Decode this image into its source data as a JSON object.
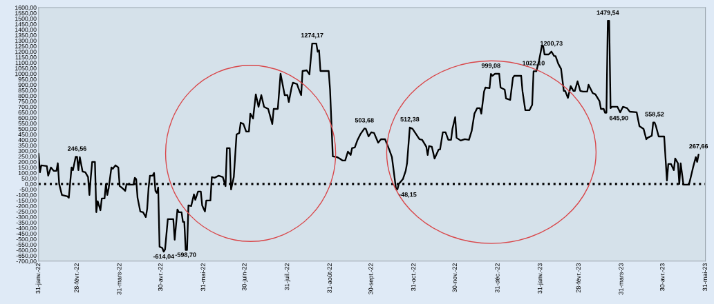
{
  "chart_data": {
    "type": "line",
    "x": [
      "2022-01-31",
      "2022-02-01",
      "2022-02-02",
      "2022-02-06",
      "2022-02-07",
      "2022-02-09",
      "2022-02-11",
      "2022-02-13",
      "2022-02-14",
      "2022-02-15",
      "2022-02-17",
      "2022-02-21",
      "2022-02-22",
      "2022-02-24",
      "2022-02-25",
      "2022-02-27",
      "2022-02-28",
      "2022-03-01",
      "2022-03-02",
      "2022-03-04",
      "2022-03-06",
      "2022-03-08",
      "2022-03-09",
      "2022-03-10",
      "2022-03-11",
      "2022-03-13",
      "2022-03-14",
      "2022-03-15",
      "2022-03-17",
      "2022-03-18",
      "2022-03-20",
      "2022-03-21",
      "2022-03-22",
      "2022-03-23",
      "2022-03-25",
      "2022-03-26",
      "2022-03-28",
      "2022-03-30",
      "2022-03-31",
      "2022-04-02",
      "2022-04-04",
      "2022-04-05",
      "2022-04-07",
      "2022-04-10",
      "2022-04-11",
      "2022-04-12",
      "2022-04-13",
      "2022-04-15",
      "2022-04-17",
      "2022-04-19",
      "2022-04-20",
      "2022-04-21",
      "2022-04-22",
      "2022-04-24",
      "2022-04-25",
      "2022-04-26",
      "2022-04-27",
      "2022-04-28",
      "2022-04-29",
      "2022-05-01",
      "2022-05-02",
      "2022-05-03",
      "2022-05-05",
      "2022-05-09",
      "2022-05-10",
      "2022-05-12",
      "2022-05-13",
      "2022-05-15",
      "2022-05-16",
      "2022-05-17",
      "2022-05-18",
      "2022-05-19",
      "2022-05-20",
      "2022-05-22",
      "2022-05-24",
      "2022-05-25",
      "2022-05-27",
      "2022-05-29",
      "2022-05-30",
      "2022-06-01",
      "2022-06-02",
      "2022-06-05",
      "2022-06-06",
      "2022-06-08",
      "2022-06-11",
      "2022-06-14",
      "2022-06-16",
      "2022-06-17",
      "2022-06-19",
      "2022-06-20",
      "2022-06-22",
      "2022-06-24",
      "2022-06-26",
      "2022-06-27",
      "2022-06-29",
      "2022-07-01",
      "2022-07-03",
      "2022-07-04",
      "2022-07-06",
      "2022-07-08",
      "2022-07-10",
      "2022-07-12",
      "2022-07-14",
      "2022-07-17",
      "2022-07-20",
      "2022-07-21",
      "2022-07-24",
      "2022-07-26",
      "2022-07-29",
      "2022-07-31",
      "2022-08-01",
      "2022-08-03",
      "2022-08-04",
      "2022-08-07",
      "2022-08-08",
      "2022-08-10",
      "2022-08-11",
      "2022-08-14",
      "2022-08-16",
      "2022-08-18",
      "2022-08-21",
      "2022-08-22",
      "2022-08-23",
      "2022-08-24",
      "2022-08-30",
      "2022-08-31",
      "2022-09-02",
      "2022-09-05",
      "2022-09-07",
      "2022-09-09",
      "2022-09-11",
      "2022-09-13",
      "2022-09-15",
      "2022-09-16",
      "2022-09-18",
      "2022-09-20",
      "2022-09-22",
      "2022-09-25",
      "2022-09-26",
      "2022-09-28",
      "2022-09-30",
      "2022-10-02",
      "2022-10-05",
      "2022-10-07",
      "2022-10-10",
      "2022-10-13",
      "2022-10-15",
      "2022-10-18",
      "2022-10-19",
      "2022-10-20",
      "2022-10-23",
      "2022-10-25",
      "2022-10-26",
      "2022-10-28",
      "2022-10-30",
      "2022-11-01",
      "2022-11-04",
      "2022-11-06",
      "2022-11-09",
      "2022-11-10",
      "2022-11-11",
      "2022-11-13",
      "2022-11-15",
      "2022-11-18",
      "2022-11-19",
      "2022-11-21",
      "2022-11-23",
      "2022-11-25",
      "2022-11-27",
      "2022-11-28",
      "2022-11-30",
      "2022-12-01",
      "2022-12-04",
      "2022-12-07",
      "2022-12-10",
      "2022-12-12",
      "2022-12-14",
      "2022-12-16",
      "2022-12-18",
      "2022-12-19",
      "2022-12-21",
      "2022-12-22",
      "2022-12-25",
      "2022-12-26",
      "2022-12-27",
      "2022-12-29",
      "2023-01-01",
      "2023-01-02",
      "2023-01-05",
      "2023-01-06",
      "2023-01-09",
      "2023-01-11",
      "2023-01-12",
      "2023-01-17",
      "2023-01-18",
      "2023-01-20",
      "2023-01-23",
      "2023-01-25",
      "2023-01-26",
      "2023-01-28",
      "2023-01-30",
      "2023-02-01",
      "2023-02-02",
      "2023-02-03",
      "2023-02-06",
      "2023-02-08",
      "2023-02-10",
      "2023-02-11",
      "2023-02-13",
      "2023-02-15",
      "2023-02-17",
      "2023-02-18",
      "2023-02-20",
      "2023-02-22",
      "2023-02-24",
      "2023-02-25",
      "2023-02-27",
      "2023-03-01",
      "2023-03-03",
      "2023-03-06",
      "2023-03-07",
      "2023-03-10",
      "2023-03-12",
      "2023-03-15",
      "2023-03-16",
      "2023-03-18",
      "2023-03-19",
      "2023-03-20",
      "2023-03-21",
      "2023-03-22",
      "2023-03-23",
      "2023-03-24",
      "2023-03-28",
      "2023-03-30",
      "2023-04-01",
      "2023-04-04",
      "2023-04-06",
      "2023-04-11",
      "2023-04-13",
      "2023-04-16",
      "2023-04-18",
      "2023-04-19",
      "2023-04-22",
      "2023-04-23",
      "2023-04-24",
      "2023-04-25",
      "2023-04-27",
      "2023-05-01",
      "2023-05-03",
      "2023-05-04",
      "2023-05-06",
      "2023-05-08",
      "2023-05-09",
      "2023-05-11",
      "2023-05-12",
      "2023-05-13",
      "2023-05-15",
      "2023-05-19",
      "2023-05-20",
      "2023-05-22",
      "2023-05-24",
      "2023-05-25",
      "2023-05-26"
    ],
    "series": [
      {
        "color": "#000000",
        "values": [
          275,
          106,
          169,
          163,
          75,
          150,
          119,
          119,
          188,
          0,
          -100,
          -113,
          -125,
          150,
          125,
          246.56,
          246.56,
          125,
          244,
          113,
          106,
          63,
          -100,
          63,
          200,
          200,
          -256,
          -156,
          -238,
          -131,
          -131,
          0,
          -100,
          -38,
          150,
          138,
          169,
          150,
          -19,
          -38,
          -63,
          0,
          -6,
          -6,
          56,
          44,
          -125,
          -250,
          -256,
          -300,
          -225,
          -38,
          75,
          75,
          100,
          -63,
          -81,
          -31,
          -569,
          -581,
          -614.04,
          -594,
          -319,
          -319,
          -506,
          -231,
          -256,
          -256,
          -344,
          -344,
          -598.7,
          -598.7,
          -194,
          -200,
          -94,
          -144,
          -69,
          -69,
          -194,
          -250,
          -150,
          -150,
          63,
          56,
          75,
          63,
          -19,
          325,
          325,
          -50,
          63,
          450,
          463,
          556,
          544,
          475,
          475,
          638,
          594,
          813,
          700,
          806,
          700,
          681,
          544,
          681,
          681,
          1000,
          806,
          806,
          744,
          875,
          919,
          906,
          869,
          806,
          1025,
          1031,
          994,
          1274.17,
          1274.17,
          1200,
          1213,
          1025,
          1025,
          856,
          250,
          244,
          231,
          213,
          213,
          294,
          263,
          325,
          331,
          400,
          450,
          503.68,
          500,
          431,
          469,
          463,
          375,
          406,
          406,
          313,
          244,
          -48.15,
          -48.15,
          0,
          44,
          119,
          188,
          512.38,
          500,
          463,
          406,
          400,
          338,
          263,
          344,
          338,
          231,
          313,
          313,
          469,
          469,
          400,
          400,
          500,
          606,
          419,
          394,
          406,
          400,
          481,
          638,
          688,
          688,
          638,
          838,
          875,
          869,
          999.08,
          981,
          1000,
          1000,
          875,
          856,
          775,
          763,
          963,
          981,
          981,
          838,
          669,
          669,
          719,
          1022.1,
          1022.1,
          1119,
          1250,
          1250,
          1175,
          1175,
          1200.73,
          1160,
          1160,
          1090,
          1044,
          844,
          844,
          781,
          888,
          844,
          844,
          931,
          844,
          838,
          838,
          900,
          825,
          813,
          750,
          681,
          681,
          645.9,
          645.9,
          1479.54,
          1479.54,
          688,
          700,
          700,
          650,
          700,
          688,
          656,
          650,
          525,
          500,
          406,
          419,
          438,
          558.52,
          558.52,
          525,
          431,
          431,
          31,
          181,
          181,
          125,
          231,
          188,
          0,
          188,
          -6,
          -6,
          44,
          150,
          244,
          200,
          267.66
        ]
      }
    ],
    "xlim": [
      "2022-01-31",
      "2023-05-31"
    ],
    "xticks": [
      {
        "value": "2022-01-31",
        "label": "31-janv.-22"
      },
      {
        "value": "2022-02-28",
        "label": "28-févr.-22"
      },
      {
        "value": "2022-03-31",
        "label": "31-mars-22"
      },
      {
        "value": "2022-04-30",
        "label": "30-avr.-22"
      },
      {
        "value": "2022-05-31",
        "label": "31-mai-22"
      },
      {
        "value": "2022-06-30",
        "label": "30-juin-22"
      },
      {
        "value": "2022-07-31",
        "label": "31-juil.-22"
      },
      {
        "value": "2022-08-31",
        "label": "31-août-22"
      },
      {
        "value": "2022-09-30",
        "label": "30-sept.-22"
      },
      {
        "value": "2022-10-31",
        "label": "31-oct.-22"
      },
      {
        "value": "2022-11-30",
        "label": "30-nov.-22"
      },
      {
        "value": "2022-12-31",
        "label": "31-déc.-22"
      },
      {
        "value": "2023-01-31",
        "label": "31-janv.-23"
      },
      {
        "value": "2023-02-28",
        "label": "28-févr.-23"
      },
      {
        "value": "2023-03-31",
        "label": "31-mars-23"
      },
      {
        "value": "2023-04-30",
        "label": "30-avr.-23"
      },
      {
        "value": "2023-05-31",
        "label": "31-mai-23"
      }
    ],
    "ylim": [
      -700,
      1600
    ],
    "yticks": [
      {
        "value": -700,
        "label": "-700,00"
      },
      {
        "value": -650,
        "label": "-650,00"
      },
      {
        "value": -600,
        "label": "-600,00"
      },
      {
        "value": -550,
        "label": "-550,00"
      },
      {
        "value": -500,
        "label": "-500,00"
      },
      {
        "value": -450,
        "label": "-450,00"
      },
      {
        "value": -400,
        "label": "-400,00"
      },
      {
        "value": -350,
        "label": "-350,00"
      },
      {
        "value": -300,
        "label": "-300,00"
      },
      {
        "value": -250,
        "label": "-250,00"
      },
      {
        "value": -200,
        "label": "-200,00"
      },
      {
        "value": -150,
        "label": "-150,00"
      },
      {
        "value": -100,
        "label": "-100,00"
      },
      {
        "value": -50,
        "label": "-50,00"
      },
      {
        "value": 0,
        "label": "0,00"
      },
      {
        "value": 50,
        "label": "50,00"
      },
      {
        "value": 100,
        "label": "100,00"
      },
      {
        "value": 150,
        "label": "150,00"
      },
      {
        "value": 200,
        "label": "200,00"
      },
      {
        "value": 250,
        "label": "250,00"
      },
      {
        "value": 300,
        "label": "300,00"
      },
      {
        "value": 350,
        "label": "350,00"
      },
      {
        "value": 400,
        "label": "400,00"
      },
      {
        "value": 450,
        "label": "450,00"
      },
      {
        "value": 500,
        "label": "500,00"
      },
      {
        "value": 550,
        "label": "550,00"
      },
      {
        "value": 600,
        "label": "600,00"
      },
      {
        "value": 650,
        "label": "650,00"
      },
      {
        "value": 700,
        "label": "700,00"
      },
      {
        "value": 750,
        "label": "750,00"
      },
      {
        "value": 800,
        "label": "800,00"
      },
      {
        "value": 850,
        "label": "850,00"
      },
      {
        "value": 900,
        "label": "900,00"
      },
      {
        "value": 950,
        "label": "950,00"
      },
      {
        "value": 1000,
        "label": "1000,00"
      },
      {
        "value": 1050,
        "label": "1050,00"
      },
      {
        "value": 1100,
        "label": "1100,00"
      },
      {
        "value": 1150,
        "label": "1150,00"
      },
      {
        "value": 1200,
        "label": "1200,00"
      },
      {
        "value": 1250,
        "label": "1250,00"
      },
      {
        "value": 1300,
        "label": "1300,00"
      },
      {
        "value": 1350,
        "label": "1350,00"
      },
      {
        "value": 1400,
        "label": "1400,00"
      },
      {
        "value": 1450,
        "label": "1450,00"
      },
      {
        "value": 1500,
        "label": "1500,00"
      },
      {
        "value": 1550,
        "label": "1550,00"
      },
      {
        "value": 1600,
        "label": "1600,00"
      }
    ],
    "ref_lines": [
      {
        "axis": "y",
        "value": 0,
        "color": "#000000",
        "line_style": "dotted"
      }
    ],
    "annotations": [
      {
        "text": "246,56",
        "x": "2022-02-28",
        "y": 246.56
      },
      {
        "text": "-614,04",
        "x": "2022-05-02",
        "y": -614.04
      },
      {
        "text": "-598,70",
        "x": "2022-05-18",
        "y": -598.7
      },
      {
        "text": "1274,17",
        "x": "2022-08-18",
        "y": 1274.17
      },
      {
        "text": "503,68",
        "x": "2022-09-25",
        "y": 503.68
      },
      {
        "text": "-48,15",
        "x": "2022-10-18",
        "y": -48.15
      },
      {
        "text": "512,38",
        "x": "2022-10-28",
        "y": 512.38
      },
      {
        "text": "999,08",
        "x": "2022-12-26",
        "y": 999.08
      },
      {
        "text": "1022,10",
        "x": "2023-01-26",
        "y": 1022.1
      },
      {
        "text": "1200,73",
        "x": "2023-02-08",
        "y": 1200.73
      },
      {
        "text": "1479,54",
        "x": "2023-03-21",
        "y": 1479.54
      },
      {
        "text": "645,90",
        "x": "2023-03-20",
        "y": 645.9
      },
      {
        "text": "558,52",
        "x": "2023-04-24",
        "y": 558.52
      },
      {
        "text": "267,66",
        "x": "2023-05-26",
        "y": 267.66
      }
    ],
    "grid": false,
    "legend": false,
    "marker": "none",
    "line_style": "solid"
  }
}
